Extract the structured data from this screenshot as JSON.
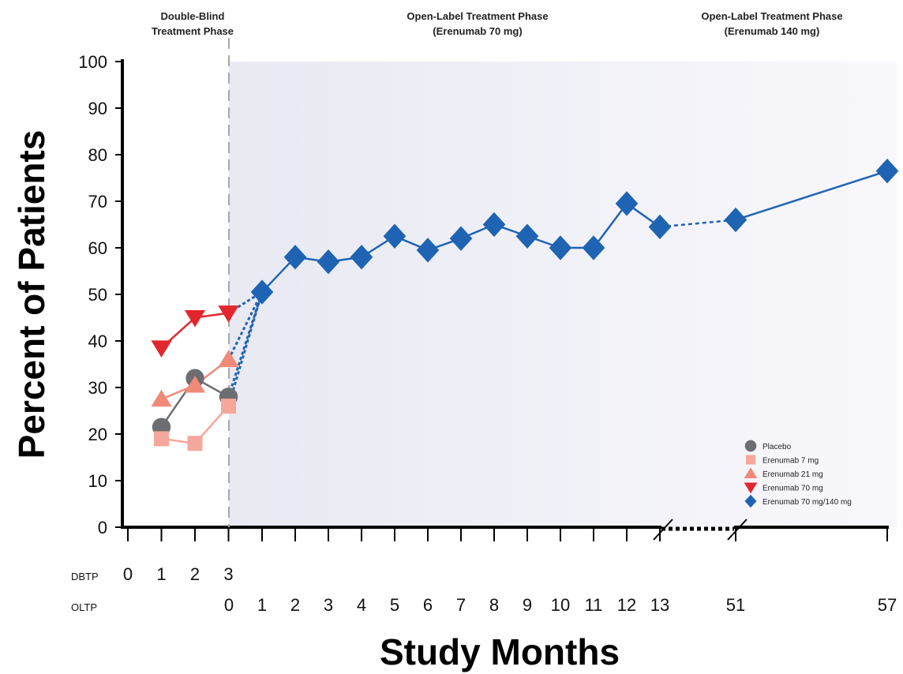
{
  "chart_data": {
    "type": "line",
    "ylabel": "Percent of Patients",
    "xlabel": "Study Months",
    "ylim": [
      0,
      100
    ],
    "yticks": [
      "0",
      "10",
      "20",
      "30",
      "40",
      "50",
      "60",
      "70",
      "80",
      "90",
      "100"
    ],
    "phases": [
      {
        "line1": "Double-Blind",
        "line2": "Treatment Phase"
      },
      {
        "line1": "Open-Label Treatment Phase",
        "line2": "(Erenumab 70 mg)"
      },
      {
        "line1": "Open-Label Treatment Phase",
        "line2": "(Erenumab 140 mg)"
      }
    ],
    "x_rows": {
      "dbtp_label": "DBTP",
      "oltp_label": "OLTP",
      "dbtp_ticks": [
        "0",
        "1",
        "2",
        "3"
      ],
      "oltp_ticks": [
        "0",
        "1",
        "2",
        "3",
        "4",
        "5",
        "6",
        "7",
        "8",
        "9",
        "10",
        "11",
        "12",
        "13",
        "51",
        "57"
      ]
    },
    "series": [
      {
        "name": "Placebo",
        "color": "#6d6e71",
        "marker": "circle",
        "phase": "DBTP",
        "x": [
          1,
          2,
          3
        ],
        "values": [
          21.5,
          32,
          28
        ]
      },
      {
        "name": "Erenumab 7 mg",
        "color": "#f4a79a",
        "marker": "square",
        "phase": "DBTP",
        "x": [
          1,
          2,
          3
        ],
        "values": [
          19,
          18,
          26
        ]
      },
      {
        "name": "Erenumab 21 mg",
        "color": "#ef8a78",
        "marker": "triangle-up",
        "phase": "DBTP",
        "x": [
          1,
          2,
          3
        ],
        "values": [
          27.5,
          30.5,
          36
        ]
      },
      {
        "name": "Erenumab 70 mg",
        "color": "#e3262d",
        "marker": "triangle-down",
        "phase": "DBTP",
        "x": [
          1,
          2,
          3
        ],
        "values": [
          38.5,
          45,
          46
        ]
      },
      {
        "name": "Erenumab 70 mg/140 mg",
        "color": "#1f64b3",
        "marker": "diamond",
        "phase": "OLTP",
        "x": [
          1,
          2,
          3,
          4,
          5,
          6,
          7,
          8,
          9,
          10,
          11,
          12,
          13,
          51,
          57
        ],
        "values": [
          50.5,
          58,
          57,
          58,
          62.5,
          59.5,
          62,
          65,
          62.5,
          60,
          60,
          69.5,
          64.5,
          66,
          76.5
        ]
      }
    ],
    "legend_position": "bottom-right"
  }
}
